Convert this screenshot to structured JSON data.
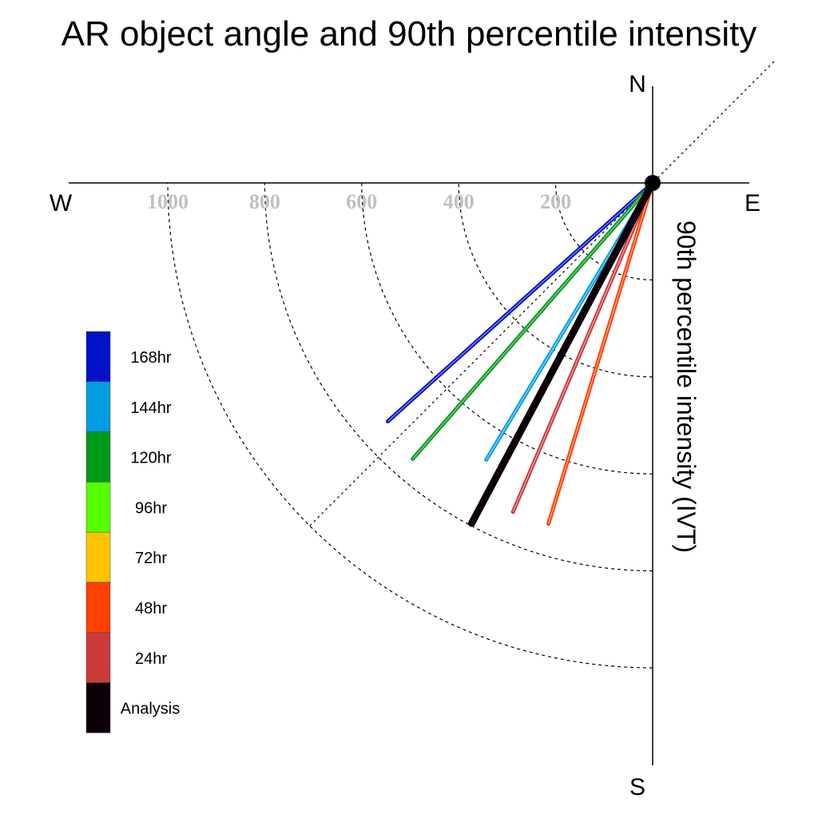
{
  "chart_data": {
    "type": "polar-vector",
    "title": "AR object angle and 90th percentile intensity",
    "ylabel": "90th percentile intensity (IVT)",
    "compass": {
      "north": "N",
      "south": "S",
      "east": "E",
      "west": "W"
    },
    "radial_ticks": [
      200,
      400,
      600,
      800,
      1000
    ],
    "radial_tick_labels": [
      "200",
      "400",
      "600",
      "800",
      "1000"
    ],
    "radial_range": [
      0,
      1000
    ],
    "grid": true,
    "guide_bearings_deg": [
      45,
      225
    ],
    "legend_position": "left",
    "legend": [
      {
        "label": "168hr",
        "color": "#0011c8"
      },
      {
        "label": "144hr",
        "color": "#009ee0"
      },
      {
        "label": "120hr",
        "color": "#009a1a"
      },
      {
        "label": "96hr",
        "color": "#55ff00"
      },
      {
        "label": "72hr",
        "color": "#ffc400"
      },
      {
        "label": "48hr",
        "color": "#ff4000"
      },
      {
        "label": "24hr",
        "color": "#cc3a3a"
      },
      {
        "label": "Analysis",
        "color": "#0d0008"
      }
    ],
    "series": [
      {
        "name": "168hr",
        "color": "#0011c8",
        "bearing_deg": 228,
        "intensity": 735
      },
      {
        "name": "144hr",
        "color": "#009ee0",
        "bearing_deg": 211,
        "intensity": 666
      },
      {
        "name": "120hr",
        "color": "#009a1a",
        "bearing_deg": 221,
        "intensity": 754
      },
      {
        "name": "48hr",
        "color": "#ff4000",
        "bearing_deg": 197,
        "intensity": 735
      },
      {
        "name": "24hr",
        "color": "#cc3a3a",
        "bearing_deg": 203,
        "intensity": 737
      },
      {
        "name": "Analysis",
        "color": "#0d0008",
        "bearing_deg": 208,
        "intensity": 795
      }
    ]
  }
}
